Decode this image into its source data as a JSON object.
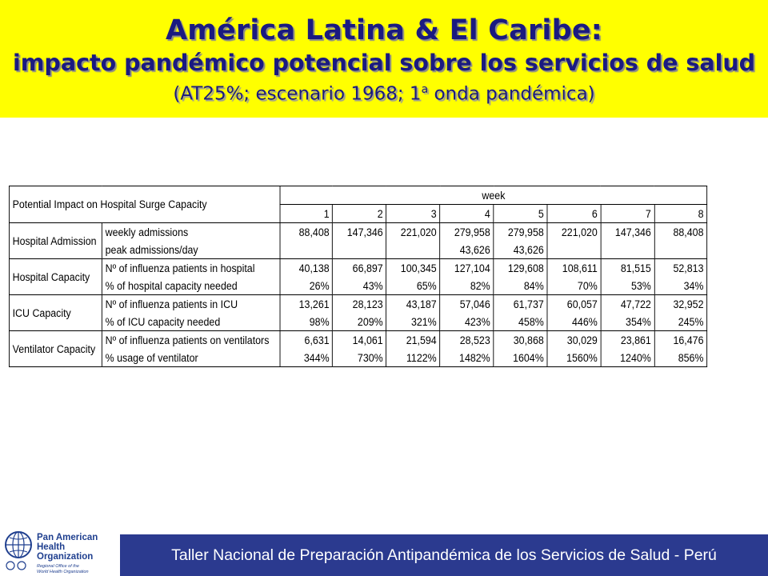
{
  "header": {
    "title_line1": "América Latina & El Caribe:",
    "title_line2": "impacto pandémico potencial sobre los servicios de salud",
    "title_line3_pre": "(AT25%; escenario 1968; 1",
    "title_line3_sup": "a",
    "title_line3_post": " onda pandémica)"
  },
  "table": {
    "caption": "Potential Impact on Hospital Surge Capacity",
    "week_label": "week",
    "weeks": [
      "1",
      "2",
      "3",
      "4",
      "5",
      "6",
      "7",
      "8"
    ],
    "groups": [
      {
        "name": "Hospital Admission",
        "rows": [
          {
            "label": "weekly admissions",
            "values": [
              "88,408",
              "147,346",
              "221,020",
              "279,958",
              "279,958",
              "221,020",
              "147,346",
              "88,408"
            ]
          },
          {
            "label": "peak admissions/day",
            "values": [
              "",
              "",
              "",
              "43,626",
              "43,626",
              "",
              "",
              ""
            ]
          }
        ]
      },
      {
        "name": "Hospital Capacity",
        "rows": [
          {
            "label": "Nº of influenza patients in hospital",
            "values": [
              "40,138",
              "66,897",
              "100,345",
              "127,104",
              "129,608",
              "108,611",
              "81,515",
              "52,813"
            ]
          },
          {
            "label": "% of hospital capacity needed",
            "values": [
              "26%",
              "43%",
              "65%",
              "82%",
              "84%",
              "70%",
              "53%",
              "34%"
            ]
          }
        ]
      },
      {
        "name": "ICU Capacity",
        "rows": [
          {
            "label": "Nº of influenza patients in ICU",
            "values": [
              "13,261",
              "28,123",
              "43,187",
              "57,046",
              "61,737",
              "60,057",
              "47,722",
              "32,952"
            ]
          },
          {
            "label": "% of ICU capacity needed",
            "values": [
              "98%",
              "209%",
              "321%",
              "423%",
              "458%",
              "446%",
              "354%",
              "245%"
            ]
          }
        ]
      },
      {
        "name": "Ventilator Capacity",
        "rows": [
          {
            "label": "Nº of influenza patients on ventilators",
            "values": [
              "6,631",
              "14,061",
              "21,594",
              "28,523",
              "30,868",
              "30,029",
              "23,861",
              "16,476"
            ]
          },
          {
            "label": "% usage of ventilator",
            "values": [
              "344%",
              "730%",
              "1122%",
              "1482%",
              "1604%",
              "1560%",
              "1240%",
              "856%"
            ]
          }
        ]
      }
    ]
  },
  "footer": {
    "text": "Taller Nacional de Preparación Antipandémica de los Servicios de Salud - Perú",
    "logo": {
      "line1": "Pan American",
      "line2": "Health",
      "line3": "Organization",
      "sub1": "Regional Office of the",
      "sub2": "World Health Organization"
    }
  },
  "colors": {
    "header_bg": "#ffff00",
    "title": "#1a1a80",
    "footer_bg": "#2b3a8f",
    "logo_blue": "#1f3f8f"
  }
}
